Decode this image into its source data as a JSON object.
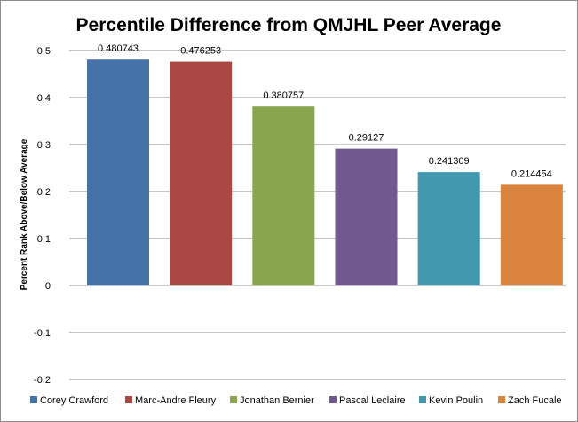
{
  "chart_data": {
    "type": "bar",
    "title": "Percentile Difference from QMJHL Peer Average",
    "xlabel": "",
    "ylabel": "Percent Rank Above/Below Average",
    "categories": [
      "Corey Crawford",
      "Marc-Andre Fleury",
      "Jonathan  Bernier",
      "Pascal Leclaire",
      "Kevin Poulin",
      "Zach Fucale"
    ],
    "values": [
      0.480743,
      0.476253,
      0.380757,
      0.29127,
      0.241309,
      0.214454
    ],
    "data_labels": [
      "0.480743",
      "0.476253",
      "0.380757",
      "0.29127",
      "0.241309",
      "0.214454"
    ],
    "colors": [
      "#4572A7",
      "#AA4643",
      "#89A54E",
      "#71588F",
      "#4198AF",
      "#DB843D"
    ],
    "ylim": [
      -0.2,
      0.5
    ],
    "yticks": [
      0.5,
      0.4,
      0.3,
      0.2,
      0.1,
      0,
      -0.1,
      -0.2
    ],
    "ytick_labels": [
      "0.5",
      "0.4",
      "0.3",
      "0.2",
      "0.1",
      "0",
      "-0.1",
      "-0.2"
    ],
    "grid": true,
    "legend_position": "bottom"
  }
}
